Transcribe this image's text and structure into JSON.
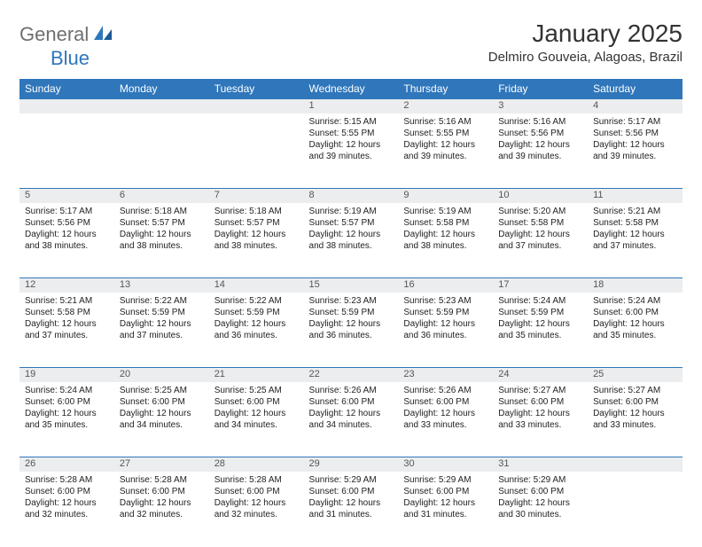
{
  "brand": {
    "part1": "General",
    "part2": "Blue"
  },
  "title": "January 2025",
  "location": "Delmiro Gouveia, Alagoas, Brazil",
  "colors": {
    "header_bg": "#2f76bb",
    "header_text": "#ffffff",
    "daynum_bg": "#ecedee",
    "border": "#2f76bb",
    "body_text": "#222222",
    "logo_gray": "#6f6f6f",
    "logo_blue": "#2f76bb"
  },
  "weekdays": [
    "Sunday",
    "Monday",
    "Tuesday",
    "Wednesday",
    "Thursday",
    "Friday",
    "Saturday"
  ],
  "weeks": [
    [
      null,
      null,
      null,
      {
        "d": "1",
        "sr": "5:15 AM",
        "ss": "5:55 PM",
        "dl": "12 hours and 39 minutes."
      },
      {
        "d": "2",
        "sr": "5:16 AM",
        "ss": "5:55 PM",
        "dl": "12 hours and 39 minutes."
      },
      {
        "d": "3",
        "sr": "5:16 AM",
        "ss": "5:56 PM",
        "dl": "12 hours and 39 minutes."
      },
      {
        "d": "4",
        "sr": "5:17 AM",
        "ss": "5:56 PM",
        "dl": "12 hours and 39 minutes."
      }
    ],
    [
      {
        "d": "5",
        "sr": "5:17 AM",
        "ss": "5:56 PM",
        "dl": "12 hours and 38 minutes."
      },
      {
        "d": "6",
        "sr": "5:18 AM",
        "ss": "5:57 PM",
        "dl": "12 hours and 38 minutes."
      },
      {
        "d": "7",
        "sr": "5:18 AM",
        "ss": "5:57 PM",
        "dl": "12 hours and 38 minutes."
      },
      {
        "d": "8",
        "sr": "5:19 AM",
        "ss": "5:57 PM",
        "dl": "12 hours and 38 minutes."
      },
      {
        "d": "9",
        "sr": "5:19 AM",
        "ss": "5:58 PM",
        "dl": "12 hours and 38 minutes."
      },
      {
        "d": "10",
        "sr": "5:20 AM",
        "ss": "5:58 PM",
        "dl": "12 hours and 37 minutes."
      },
      {
        "d": "11",
        "sr": "5:21 AM",
        "ss": "5:58 PM",
        "dl": "12 hours and 37 minutes."
      }
    ],
    [
      {
        "d": "12",
        "sr": "5:21 AM",
        "ss": "5:58 PM",
        "dl": "12 hours and 37 minutes."
      },
      {
        "d": "13",
        "sr": "5:22 AM",
        "ss": "5:59 PM",
        "dl": "12 hours and 37 minutes."
      },
      {
        "d": "14",
        "sr": "5:22 AM",
        "ss": "5:59 PM",
        "dl": "12 hours and 36 minutes."
      },
      {
        "d": "15",
        "sr": "5:23 AM",
        "ss": "5:59 PM",
        "dl": "12 hours and 36 minutes."
      },
      {
        "d": "16",
        "sr": "5:23 AM",
        "ss": "5:59 PM",
        "dl": "12 hours and 36 minutes."
      },
      {
        "d": "17",
        "sr": "5:24 AM",
        "ss": "5:59 PM",
        "dl": "12 hours and 35 minutes."
      },
      {
        "d": "18",
        "sr": "5:24 AM",
        "ss": "6:00 PM",
        "dl": "12 hours and 35 minutes."
      }
    ],
    [
      {
        "d": "19",
        "sr": "5:24 AM",
        "ss": "6:00 PM",
        "dl": "12 hours and 35 minutes."
      },
      {
        "d": "20",
        "sr": "5:25 AM",
        "ss": "6:00 PM",
        "dl": "12 hours and 34 minutes."
      },
      {
        "d": "21",
        "sr": "5:25 AM",
        "ss": "6:00 PM",
        "dl": "12 hours and 34 minutes."
      },
      {
        "d": "22",
        "sr": "5:26 AM",
        "ss": "6:00 PM",
        "dl": "12 hours and 34 minutes."
      },
      {
        "d": "23",
        "sr": "5:26 AM",
        "ss": "6:00 PM",
        "dl": "12 hours and 33 minutes."
      },
      {
        "d": "24",
        "sr": "5:27 AM",
        "ss": "6:00 PM",
        "dl": "12 hours and 33 minutes."
      },
      {
        "d": "25",
        "sr": "5:27 AM",
        "ss": "6:00 PM",
        "dl": "12 hours and 33 minutes."
      }
    ],
    [
      {
        "d": "26",
        "sr": "5:28 AM",
        "ss": "6:00 PM",
        "dl": "12 hours and 32 minutes."
      },
      {
        "d": "27",
        "sr": "5:28 AM",
        "ss": "6:00 PM",
        "dl": "12 hours and 32 minutes."
      },
      {
        "d": "28",
        "sr": "5:28 AM",
        "ss": "6:00 PM",
        "dl": "12 hours and 32 minutes."
      },
      {
        "d": "29",
        "sr": "5:29 AM",
        "ss": "6:00 PM",
        "dl": "12 hours and 31 minutes."
      },
      {
        "d": "30",
        "sr": "5:29 AM",
        "ss": "6:00 PM",
        "dl": "12 hours and 31 minutes."
      },
      {
        "d": "31",
        "sr": "5:29 AM",
        "ss": "6:00 PM",
        "dl": "12 hours and 30 minutes."
      },
      null
    ]
  ],
  "labels": {
    "sunrise": "Sunrise:",
    "sunset": "Sunset:",
    "daylight": "Daylight:"
  }
}
